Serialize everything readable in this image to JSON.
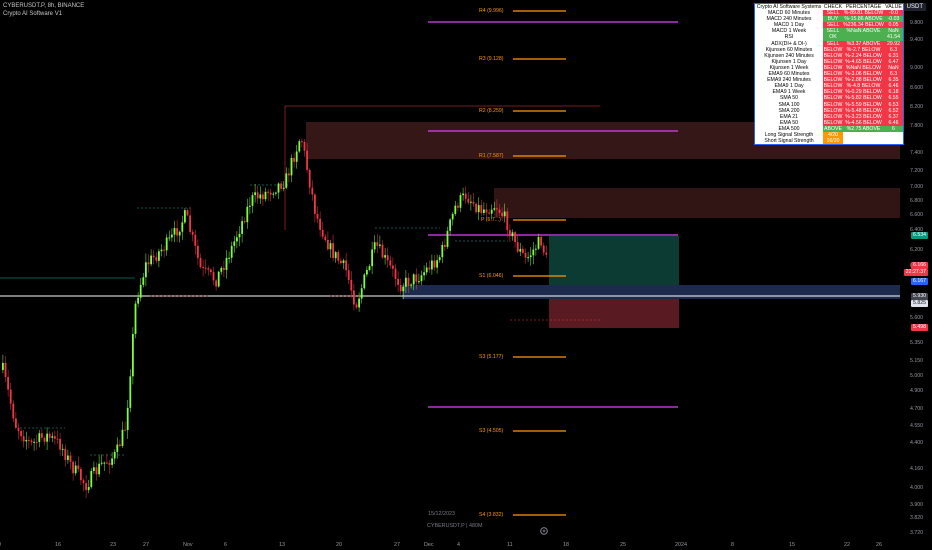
{
  "header": {
    "symbol_line": "CYBERUSDT.P, 8h, BINANCE",
    "indicator": "Crypto AI Software V1"
  },
  "price_axis": {
    "currency": "USDT",
    "ticks": [
      "9.800",
      "9.400",
      "9.000",
      "8.600",
      "8.200",
      "7.800",
      "7.400",
      "7.200",
      "7.000",
      "6.800",
      "6.600",
      "6.400",
      "6.200",
      "6.000",
      "5.600",
      "5.350",
      "5.150",
      "5.000",
      "4.900",
      "4.700",
      "4.550",
      "4.400",
      "4.160",
      "4.000",
      "3.900",
      "3.820",
      "3.720"
    ],
    "tags": [
      {
        "label": "6.534",
        "color": "#089981"
      },
      {
        "label": "6.166",
        "color": "#f23645"
      },
      {
        "label": "22:27:37",
        "color": "#f23645"
      },
      {
        "label": "6.167",
        "color": "#2962ff"
      },
      {
        "label": "5.930",
        "color": "#434651"
      },
      {
        "label": "5.825",
        "color": "#e0e3eb"
      },
      {
        "label": "5.498",
        "color": "#f23645"
      }
    ]
  },
  "time_axis": {
    "ticks": [
      "9",
      "16",
      "23",
      "27",
      "Nov",
      "6",
      "13",
      "20",
      "27",
      "Dec",
      "4",
      "11",
      "18",
      "25",
      "2024",
      "8",
      "15",
      "22",
      "26"
    ]
  },
  "pivots": [
    "R4 (9.996)",
    "R3 (9.128)",
    "R2 (8.259)",
    "R1 (7.587)",
    "P (6.7...)",
    "S1 (6.046)",
    "S3 (5.177)",
    "S3 (4.505)",
    "S4 (3.832)"
  ],
  "bottom": {
    "date": "15/12/2023",
    "symbol": "CYBERUSDT.P | 480M"
  },
  "table": {
    "headers": [
      "Crypto AI Software Systems",
      "CHECK",
      "PERCENTAGE",
      "VALUE"
    ],
    "rows": [
      {
        "name": "MACD 60 Minutes",
        "check": "SELL",
        "pct": "%-89.81 BELOW",
        "val": "-0.0",
        "cc": "red",
        "pc": "red",
        "vc": "red"
      },
      {
        "name": "MACD 240 Minutes",
        "check": "BUY",
        "pct": "%-15.86 ABOVE",
        "val": "-0.03",
        "cc": "grn",
        "pc": "grn",
        "vc": "grn"
      },
      {
        "name": "MACD 1 Day",
        "check": "SELL",
        "pct": "%236.34 BELOW",
        "val": "0.05",
        "cc": "red",
        "pc": "red",
        "vc": "red"
      },
      {
        "name": "MACD 1 Week",
        "check": "SELL",
        "pct": "%NaN ABOVE",
        "val": "NaN",
        "cc": "grn",
        "pc": "grn",
        "vc": "grn"
      },
      {
        "name": "RSI",
        "check": "OK",
        "pct": "",
        "val": "41.54",
        "cc": "grn",
        "pc": "grn",
        "vc": "grn"
      },
      {
        "name": "ADX(DI+ & DI-)",
        "check": "SELL",
        "pct": "%3.37 ABOVE",
        "val": "29.92",
        "cc": "red",
        "pc": "red",
        "vc": "red"
      },
      {
        "name": "Kijunsen 60 Minutes",
        "check": "BELOW",
        "pct": "%-2.7 BELOW",
        "val": "6.3",
        "cc": "red",
        "pc": "red",
        "vc": "red"
      },
      {
        "name": "Kijunsen 240 Minutes",
        "check": "BELOW",
        "pct": "%-2.24 BELOW",
        "val": "6.31",
        "cc": "red",
        "pc": "red",
        "vc": "red"
      },
      {
        "name": "Kijunsen 1 Day",
        "check": "BELOW",
        "pct": "%-4.65 BELOW",
        "val": "6.47",
        "cc": "red",
        "pc": "red",
        "vc": "red"
      },
      {
        "name": "Kijunsen 1 Week",
        "check": "BELOW",
        "pct": "%NaN BELOW",
        "val": "NaN",
        "cc": "red",
        "pc": "red",
        "vc": "red"
      },
      {
        "name": "EMA9 60 Minutes",
        "check": "BELOW",
        "pct": "%-3.06 BELOW",
        "val": "6.3",
        "cc": "red",
        "pc": "red",
        "vc": "red"
      },
      {
        "name": "EMA9 240 Minutes",
        "check": "BELOW",
        "pct": "%-2.88 BELOW",
        "val": "6.35",
        "cc": "red",
        "pc": "red",
        "vc": "red"
      },
      {
        "name": "EMA9 1 Day",
        "check": "BELOW",
        "pct": "%-4.8 BELOW",
        "val": "6.46",
        "cc": "red",
        "pc": "red",
        "vc": "red"
      },
      {
        "name": "EMA9 1 Week",
        "check": "BELOW",
        "pct": "%-0.29 BELOW",
        "val": "6.18",
        "cc": "red",
        "pc": "red",
        "vc": "red"
      },
      {
        "name": "SMA 50",
        "check": "BELOW",
        "pct": "%-5.82 BELOW",
        "val": "6.55",
        "cc": "red",
        "pc": "red",
        "vc": "red"
      },
      {
        "name": "SMA 100",
        "check": "BELOW",
        "pct": "%-5.59 BELOW",
        "val": "6.53",
        "cc": "red",
        "pc": "red",
        "vc": "red"
      },
      {
        "name": "SMA 200",
        "check": "BELOW",
        "pct": "%-5.48 BELOW",
        "val": "6.52",
        "cc": "red",
        "pc": "red",
        "vc": "red"
      },
      {
        "name": "EMA 21",
        "check": "BELOW",
        "pct": "%-3.23 BELOW",
        "val": "6.37",
        "cc": "red",
        "pc": "red",
        "vc": "red"
      },
      {
        "name": "EMA 50",
        "check": "BELOW",
        "pct": "%-4.56 BELOW",
        "val": "6.46",
        "cc": "red",
        "pc": "red",
        "vc": "red"
      },
      {
        "name": "EMA 500",
        "check": "ABOVE",
        "pct": "%2.75 ABOVE",
        "val": "6",
        "cc": "grn",
        "pc": "grn",
        "vc": "grn"
      },
      {
        "name": "Long Signal Strength",
        "check": "4/20",
        "pct": "",
        "val": "",
        "cc": "org",
        "pc": "",
        "vc": ""
      },
      {
        "name": "Short Signal Strength",
        "check": "16/20",
        "pct": "",
        "val": "",
        "cc": "org",
        "pc": "",
        "vc": ""
      }
    ]
  }
}
